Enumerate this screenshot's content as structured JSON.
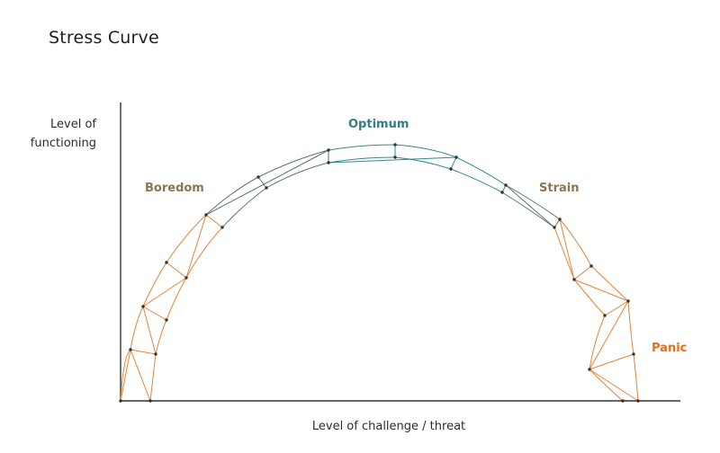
{
  "title": "Stress Curve",
  "axes": {
    "y_label_line1": "Level of",
    "y_label_line2": "functioning",
    "x_label": "Level of challenge / threat"
  },
  "zones": {
    "boredom": "Boredom",
    "optimum": "Optimum",
    "strain": "Strain",
    "panic": "Panic"
  },
  "colors": {
    "axis": "#333333",
    "boredom_text": "#8c7556",
    "strain_text": "#8c7556",
    "optimum": "#2f7f84",
    "panic": "#e07020",
    "orange_line": "#e0843a",
    "grey_line": "#5e7468",
    "teal_line": "#2f8a8e",
    "node": "#333333"
  }
}
